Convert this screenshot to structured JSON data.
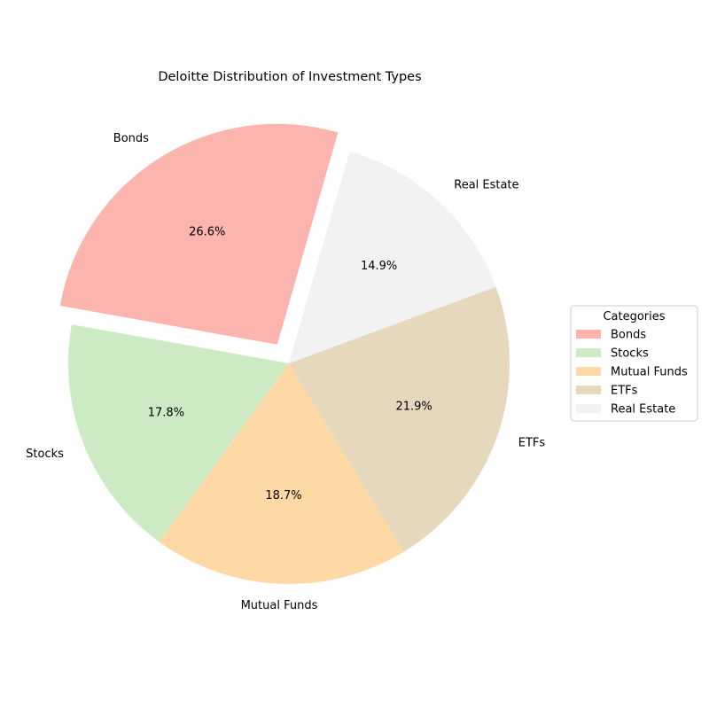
{
  "chart_data": {
    "type": "pie",
    "title": "Deloitte Distribution of Investment Types",
    "categories": [
      "Bonds",
      "Stocks",
      "Mutual Funds",
      "ETFs",
      "Real Estate"
    ],
    "values": [
      26.6,
      17.8,
      18.7,
      21.9,
      14.9
    ],
    "value_labels": [
      "26.6%",
      "17.8%",
      "18.7%",
      "21.9%",
      "14.9%"
    ],
    "colors": [
      "#fbb4ae",
      "#ccebc5",
      "#fed9a6",
      "#e5d8bd",
      "#f2f2f2"
    ],
    "exploded": [
      "Bonds"
    ],
    "start_angle_deg": 74,
    "direction": "counterclockwise",
    "legend": {
      "title": "Categories",
      "placement": "right"
    }
  }
}
